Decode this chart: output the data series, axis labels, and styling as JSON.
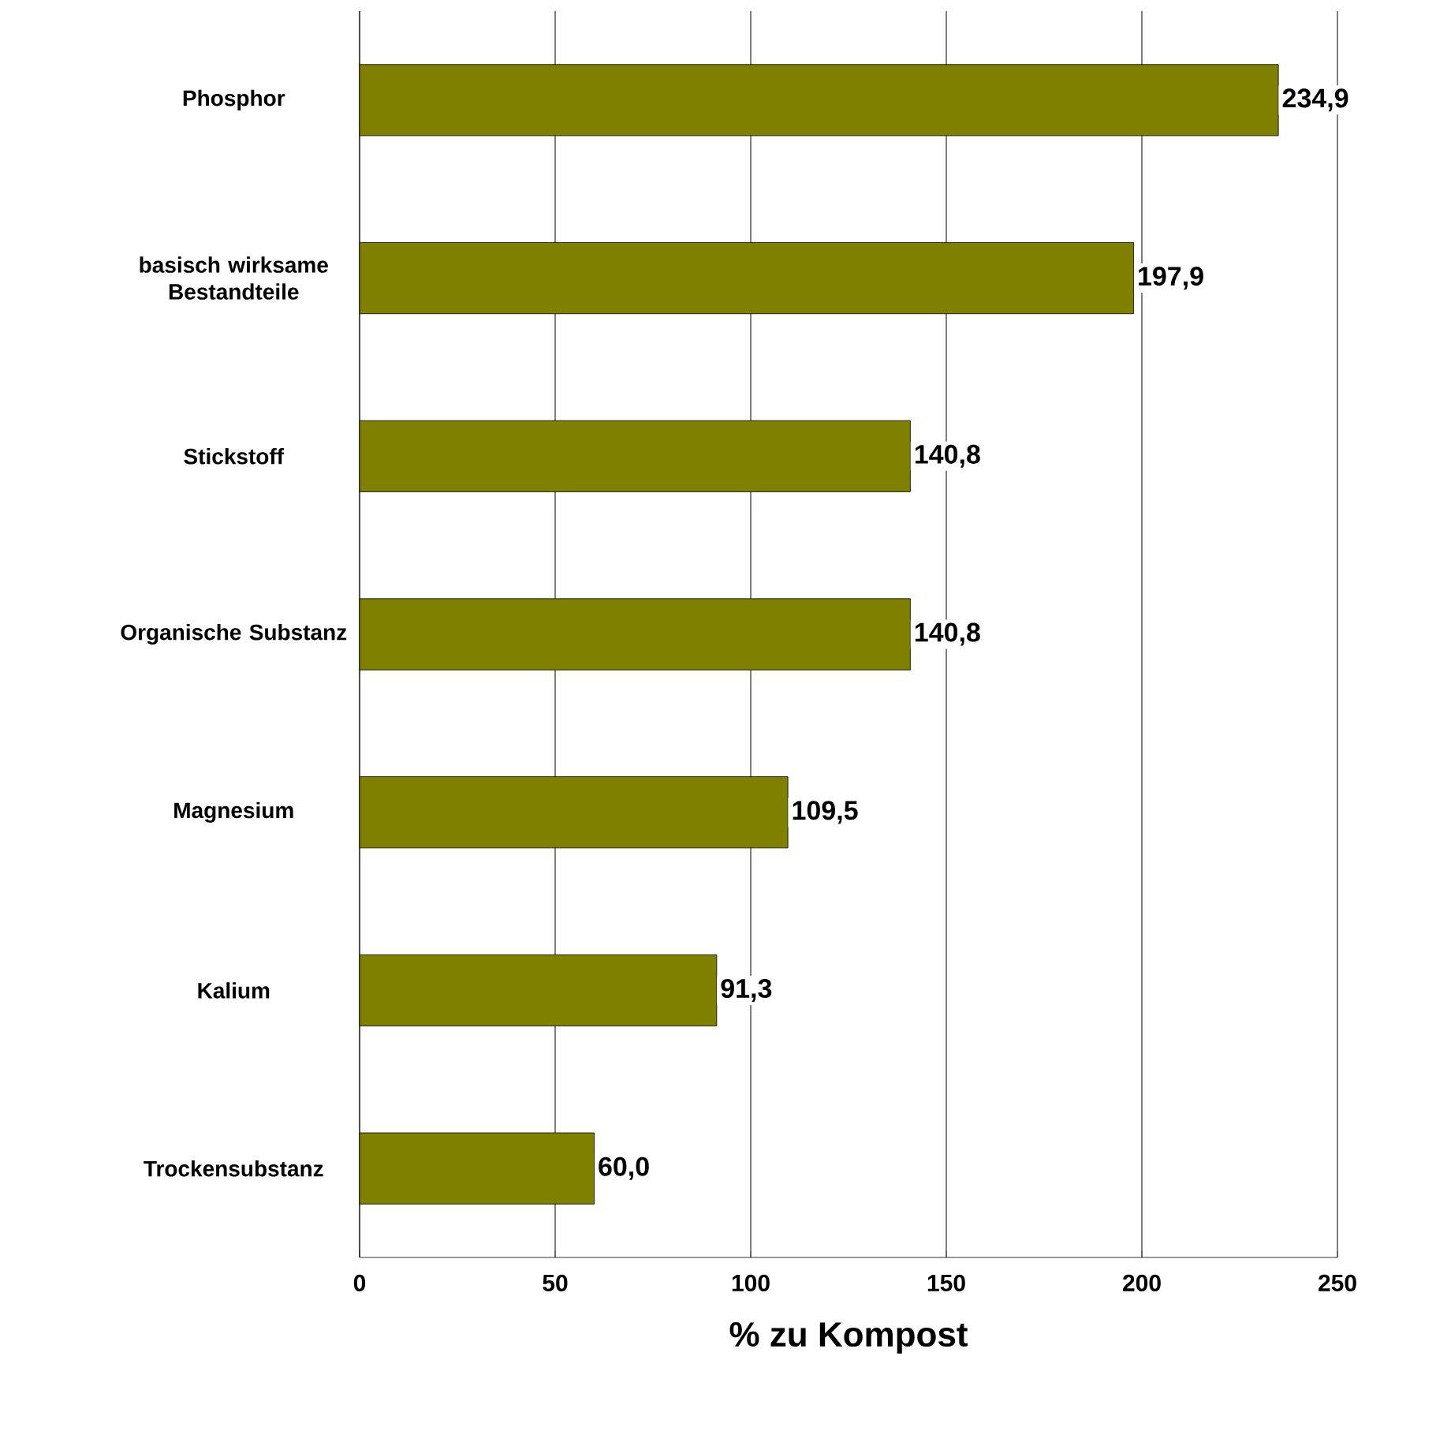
{
  "chart_data": {
    "type": "bar",
    "orientation": "horizontal",
    "xlabel": "% zu Kompost",
    "categories": [
      "Phosphor",
      "basisch wirksame Bestandteile",
      "Stickstoff",
      "Organische Substanz",
      "Magnesium",
      "Kalium",
      "Trockensubstanz"
    ],
    "values": [
      234.9,
      197.9,
      140.8,
      140.8,
      109.5,
      91.3,
      60.0
    ],
    "value_labels": [
      "234,9",
      "197,9",
      "140,8",
      "140,8",
      "109,5",
      "91,3",
      "60,0"
    ],
    "color": "#808000",
    "xlim": [
      0,
      250
    ],
    "xticks": [
      0,
      50,
      100,
      150,
      200,
      250
    ],
    "grid": "x"
  }
}
